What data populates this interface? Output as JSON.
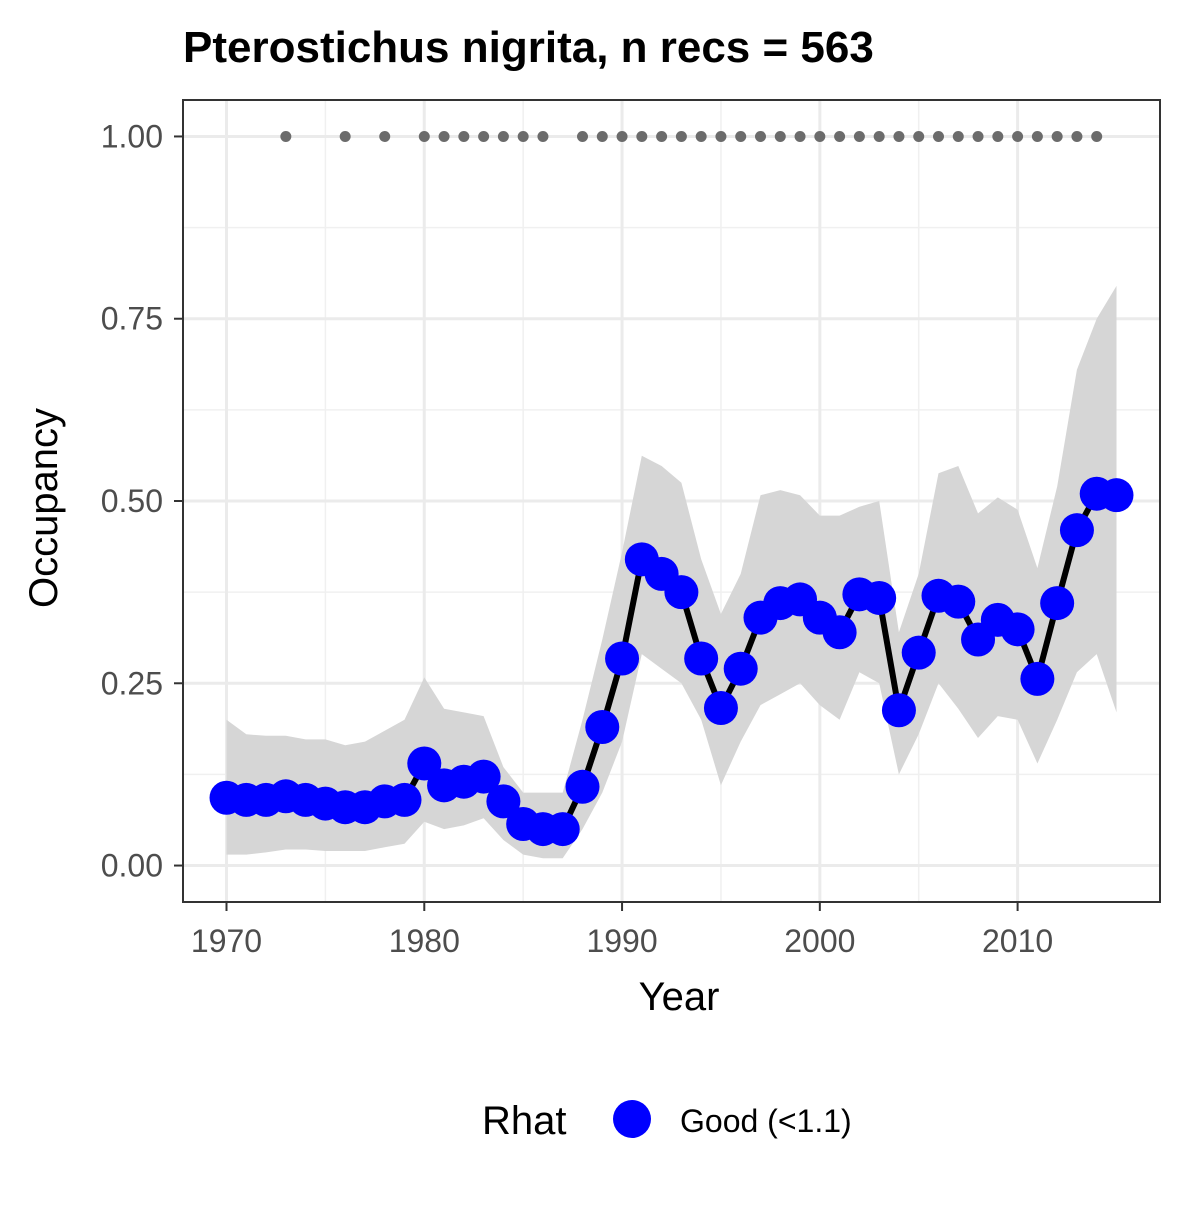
{
  "chart_data": {
    "type": "line",
    "title": "Pterostichus nigrita, n recs = 563",
    "xlabel": "Year",
    "ylabel": "Occupancy",
    "xlim": [
      1967.8,
      2017.2
    ],
    "ylim": [
      -0.05,
      1.05
    ],
    "x_ticks": [
      1970,
      1980,
      1990,
      2000,
      2010
    ],
    "x_tick_labels": [
      "1970",
      "1980",
      "1990",
      "2000",
      "2010"
    ],
    "y_ticks": [
      0,
      0.25,
      0.5,
      0.75,
      1.0
    ],
    "y_tick_labels": [
      "0.00",
      "0.25",
      "0.50",
      "0.75",
      "1.00"
    ],
    "grid": true,
    "legend": {
      "position": "bottom",
      "title": "Rhat",
      "entries": [
        {
          "label": "Good (<1.1)",
          "color": "#0000ff"
        }
      ]
    },
    "series": [
      {
        "name": "Good (<1.1)",
        "color": "#0000ff",
        "x": [
          1970,
          1971,
          1972,
          1973,
          1974,
          1975,
          1976,
          1977,
          1978,
          1979,
          1980,
          1981,
          1982,
          1983,
          1984,
          1985,
          1986,
          1987,
          1988,
          1989,
          1990,
          1991,
          1992,
          1993,
          1994,
          1995,
          1996,
          1997,
          1998,
          1999,
          2000,
          2001,
          2002,
          2003,
          2004,
          2005,
          2006,
          2007,
          2008,
          2009,
          2010,
          2011,
          2012,
          2013,
          2014,
          2015
        ],
        "values": [
          0.093,
          0.09,
          0.09,
          0.095,
          0.09,
          0.085,
          0.08,
          0.08,
          0.088,
          0.09,
          0.14,
          0.11,
          0.115,
          0.122,
          0.088,
          0.057,
          0.05,
          0.05,
          0.108,
          0.19,
          0.284,
          0.42,
          0.4,
          0.375,
          0.284,
          0.216,
          0.27,
          0.34,
          0.36,
          0.365,
          0.34,
          0.32,
          0.372,
          0.367,
          0.213,
          0.292,
          0.37,
          0.362,
          0.31,
          0.337,
          0.324,
          0.256,
          0.36,
          0.46,
          0.51,
          0.508
        ],
        "lower": [
          0.015,
          0.015,
          0.018,
          0.022,
          0.022,
          0.02,
          0.02,
          0.02,
          0.025,
          0.03,
          0.06,
          0.05,
          0.055,
          0.065,
          0.035,
          0.015,
          0.01,
          0.01,
          0.05,
          0.1,
          0.17,
          0.29,
          0.27,
          0.25,
          0.2,
          0.11,
          0.17,
          0.22,
          0.235,
          0.25,
          0.22,
          0.2,
          0.265,
          0.25,
          0.125,
          0.18,
          0.25,
          0.215,
          0.175,
          0.205,
          0.2,
          0.14,
          0.2,
          0.265,
          0.29,
          0.21
        ],
        "upper": [
          0.2,
          0.18,
          0.178,
          0.178,
          0.173,
          0.173,
          0.165,
          0.17,
          0.185,
          0.2,
          0.258,
          0.215,
          0.21,
          0.205,
          0.135,
          0.1,
          0.1,
          0.1,
          0.2,
          0.31,
          0.43,
          0.562,
          0.548,
          0.525,
          0.42,
          0.345,
          0.4,
          0.508,
          0.515,
          0.508,
          0.48,
          0.48,
          0.492,
          0.5,
          0.32,
          0.4,
          0.538,
          0.548,
          0.483,
          0.505,
          0.488,
          0.408,
          0.52,
          0.68,
          0.75,
          0.795
        ]
      }
    ],
    "record_years": {
      "y": 1.0,
      "color": "#6b6b6b",
      "x": [
        1973,
        1976,
        1978,
        1980,
        1981,
        1982,
        1983,
        1984,
        1985,
        1986,
        1988,
        1989,
        1990,
        1991,
        1992,
        1993,
        1994,
        1995,
        1996,
        1997,
        1998,
        1999,
        2000,
        2001,
        2002,
        2003,
        2004,
        2005,
        2006,
        2007,
        2008,
        2009,
        2010,
        2011,
        2012,
        2013,
        2014
      ]
    }
  }
}
